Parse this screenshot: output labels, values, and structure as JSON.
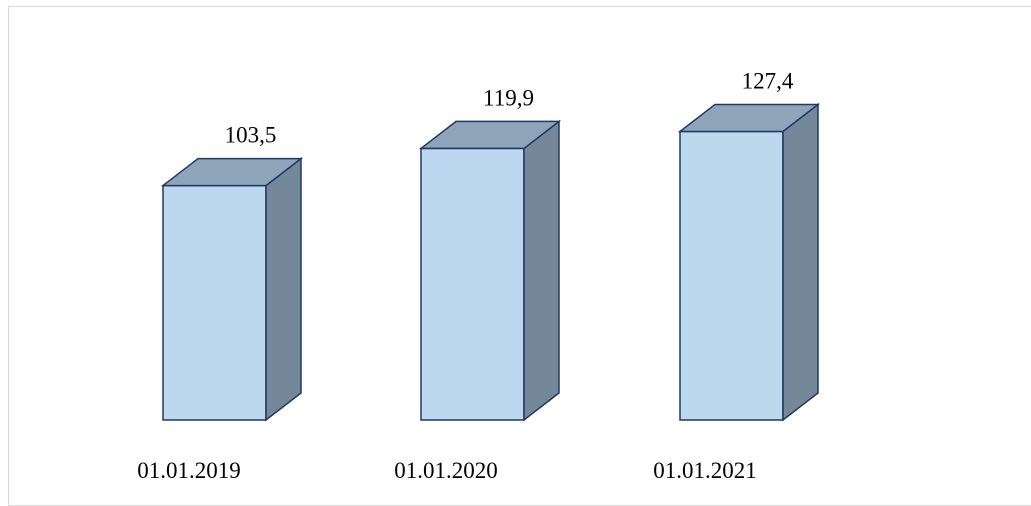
{
  "chart_data": {
    "type": "bar",
    "style": "3d-column",
    "categories": [
      "01.01.2019",
      "01.01.2020",
      "01.01.2021"
    ],
    "values": [
      103.5,
      119.9,
      127.4
    ],
    "value_labels": [
      "103,5",
      "119,9",
      "127,4"
    ],
    "title": "",
    "xlabel": "",
    "ylabel": "",
    "ylim": [
      0,
      140
    ],
    "grid": false,
    "legend": "none",
    "colors": {
      "front": "#bdd7ee",
      "top": "#8ea4b9",
      "side": "#75889a",
      "stroke": "#1f3864",
      "frame": "#d9d9d9"
    }
  }
}
